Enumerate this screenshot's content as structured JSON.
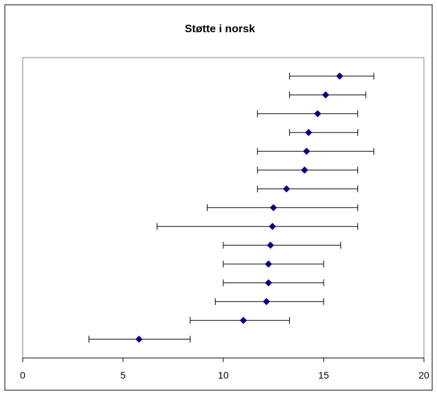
{
  "chart_data": {
    "type": "scatter",
    "title": "Støtte i norsk",
    "xlabel": "",
    "ylabel": "",
    "xlim": [
      0,
      20
    ],
    "xticks": [
      0,
      5,
      10,
      15,
      20
    ],
    "grid": false,
    "legend": "none",
    "plot_background": "#ffffff",
    "point_color": "#000080",
    "errorbar_color": "#000000",
    "points": [
      {
        "x": 15.8,
        "low": 13.3,
        "high": 17.5
      },
      {
        "x": 15.1,
        "low": 13.3,
        "high": 17.1
      },
      {
        "x": 14.7,
        "low": 11.7,
        "high": 16.7
      },
      {
        "x": 14.25,
        "low": 13.3,
        "high": 16.7
      },
      {
        "x": 14.15,
        "low": 11.7,
        "high": 17.5
      },
      {
        "x": 14.05,
        "low": 11.7,
        "high": 16.7
      },
      {
        "x": 13.15,
        "low": 11.7,
        "high": 16.7
      },
      {
        "x": 12.5,
        "low": 9.2,
        "high": 16.7
      },
      {
        "x": 12.45,
        "low": 6.7,
        "high": 16.7
      },
      {
        "x": 12.35,
        "low": 10.0,
        "high": 15.85
      },
      {
        "x": 12.25,
        "low": 10.0,
        "high": 15.0
      },
      {
        "x": 12.25,
        "low": 10.0,
        "high": 15.0
      },
      {
        "x": 12.15,
        "low": 9.6,
        "high": 15.0
      },
      {
        "x": 11.0,
        "low": 8.35,
        "high": 13.3
      },
      {
        "x": 5.8,
        "low": 3.3,
        "high": 8.35
      }
    ]
  }
}
